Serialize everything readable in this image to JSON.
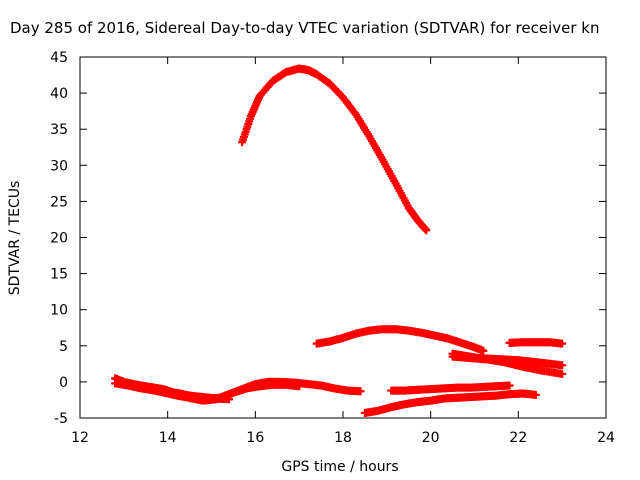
{
  "chart_data": {
    "type": "scatter",
    "title": "Day 285 of 2016, Sidereal Day-to-day VTEC variation (SDTVAR) for receiver kn",
    "xlabel": "GPS time / hours",
    "ylabel": "SDTVAR / TECUs",
    "xlim": [
      12,
      24
    ],
    "ylim": [
      -5,
      45
    ],
    "xticks": [
      "12",
      "14",
      "16",
      "18",
      "20",
      "22",
      "24"
    ],
    "yticks": [
      "-5",
      "0",
      "5",
      "10",
      "15",
      "20",
      "25",
      "30",
      "35",
      "40",
      "45"
    ],
    "grid": false,
    "legend": "none",
    "marker": "plus",
    "color": "#ff0000",
    "series": [
      {
        "x": [
          15.7,
          15.9,
          16.1,
          16.4,
          16.7,
          17.0,
          17.2,
          17.4,
          17.7,
          18.0,
          18.3,
          18.6,
          18.9,
          19.2,
          19.5,
          19.7,
          19.9
        ],
        "values": [
          33.2,
          36.8,
          39.6,
          41.7,
          42.9,
          43.4,
          43.2,
          42.6,
          41.3,
          39.4,
          37.0,
          34.0,
          30.8,
          27.5,
          24.1,
          22.4,
          21.0
        ]
      },
      {
        "x": [
          12.8,
          13.0,
          13.3,
          13.6,
          13.9,
          14.2,
          14.5,
          14.8,
          15.1,
          15.4,
          15.7,
          16.0,
          16.3,
          16.6,
          16.9,
          17.2,
          17.5,
          17.8,
          18.1,
          18.4
        ],
        "values": [
          0.5,
          0.0,
          -0.4,
          -0.7,
          -1.0,
          -1.6,
          -2.2,
          -2.6,
          -2.4,
          -1.7,
          -1.0,
          -0.3,
          0.0,
          0.0,
          -0.1,
          -0.3,
          -0.5,
          -0.9,
          -1.2,
          -1.3
        ]
      },
      {
        "x": [
          12.8,
          13.1,
          13.4,
          13.7,
          14.0,
          14.3,
          14.6,
          14.9,
          15.2,
          15.5,
          15.8,
          16.1,
          16.4,
          16.7,
          17.0
        ],
        "values": [
          -0.2,
          -0.5,
          -0.9,
          -1.2,
          -1.6,
          -2.0,
          -2.3,
          -2.3,
          -2.2,
          -1.5,
          -0.9,
          -0.6,
          -0.4,
          -0.4,
          -0.6
        ]
      },
      {
        "x": [
          14.2,
          14.5,
          14.8,
          15.1,
          15.4
        ],
        "values": [
          -1.5,
          -1.9,
          -2.1,
          -2.3,
          -2.4
        ]
      },
      {
        "x": [
          17.4,
          17.7,
          18.0,
          18.3,
          18.6,
          18.9,
          19.2,
          19.5,
          19.8,
          20.1,
          20.4,
          20.7,
          21.0,
          21.2
        ],
        "values": [
          5.3,
          5.6,
          6.1,
          6.7,
          7.1,
          7.3,
          7.3,
          7.1,
          6.8,
          6.4,
          6.0,
          5.4,
          4.8,
          4.3
        ]
      },
      {
        "x": [
          18.5,
          18.8,
          19.1,
          19.4,
          19.7,
          20.0,
          20.3,
          20.6,
          20.9,
          21.2,
          21.5,
          21.8,
          22.1,
          22.4
        ],
        "values": [
          -4.3,
          -4.0,
          -3.5,
          -3.1,
          -2.8,
          -2.6,
          -2.3,
          -2.2,
          -2.1,
          -2.0,
          -1.9,
          -1.7,
          -1.6,
          -1.8
        ]
      },
      {
        "x": [
          19.1,
          19.4,
          19.7,
          20.0,
          20.3,
          20.6,
          20.9,
          21.2,
          21.5,
          21.8
        ],
        "values": [
          -1.2,
          -1.2,
          -1.1,
          -1.0,
          -0.9,
          -0.8,
          -0.8,
          -0.7,
          -0.6,
          -0.5
        ]
      },
      {
        "x": [
          20.5,
          20.8,
          21.1,
          21.4,
          21.7,
          22.0,
          22.3,
          22.6,
          23.0
        ],
        "values": [
          3.9,
          3.6,
          3.3,
          3.2,
          3.1,
          3.0,
          2.8,
          2.6,
          2.3
        ]
      },
      {
        "x": [
          20.5,
          20.9,
          21.3,
          21.7,
          22.1,
          22.5,
          23.0
        ],
        "values": [
          3.5,
          3.3,
          3.1,
          2.7,
          2.1,
          1.6,
          1.1
        ]
      },
      {
        "x": [
          21.8,
          22.1,
          22.4,
          22.7,
          23.0
        ],
        "values": [
          5.4,
          5.5,
          5.5,
          5.5,
          5.3
        ]
      }
    ]
  }
}
